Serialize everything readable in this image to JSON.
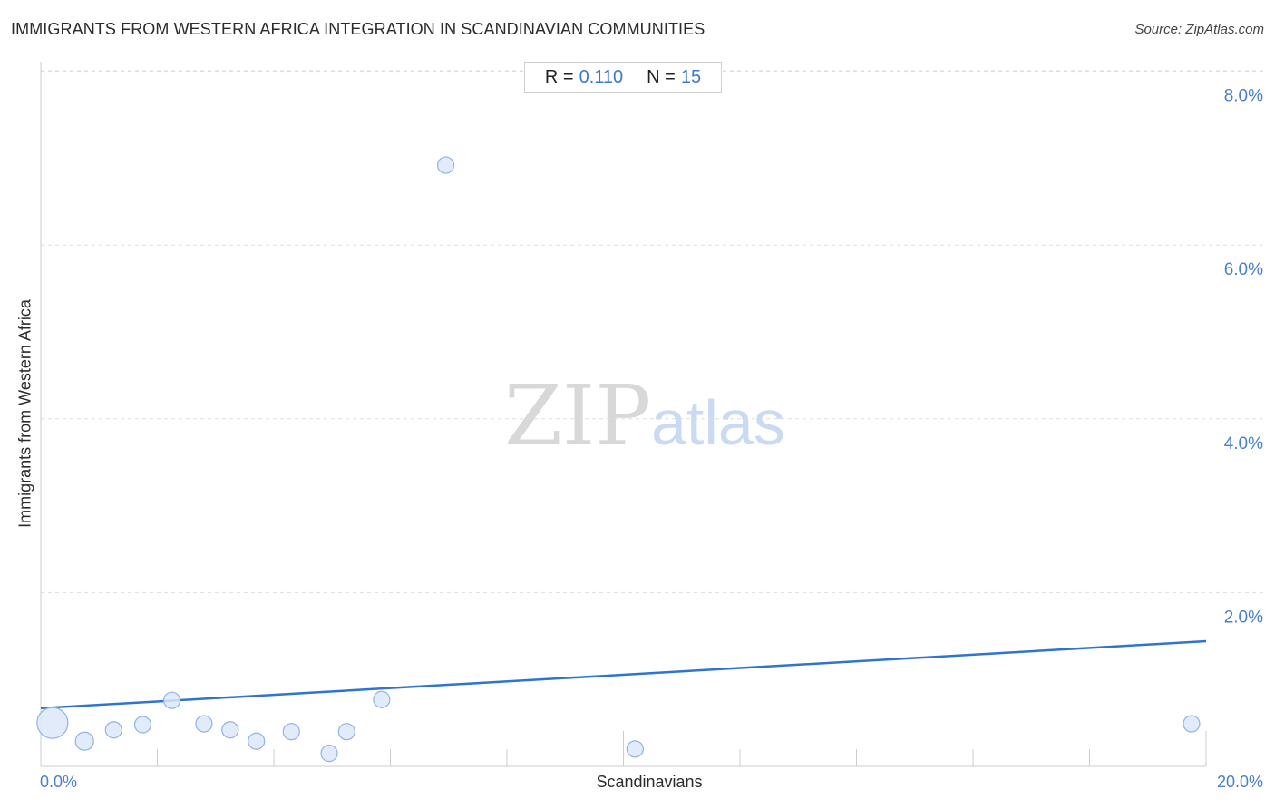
{
  "header": {
    "title": "IMMIGRANTS FROM WESTERN AFRICA INTEGRATION IN SCANDINAVIAN COMMUNITIES",
    "source": "Source: ZipAtlas.com"
  },
  "stats": {
    "r_label": "R =",
    "r_value": "0.110",
    "n_label": "N =",
    "n_value": "15"
  },
  "watermark": {
    "zip": "ZIP",
    "atlas": "atlas"
  },
  "colors": {
    "point_fill": "#dce8f8",
    "point_stroke": "#8fb3e6",
    "trend_line": "#2f74d0",
    "tick_label": "#4a7fd0",
    "grid": "#dddddd"
  },
  "chart_data": {
    "type": "scatter",
    "title": "IMMIGRANTS FROM WESTERN AFRICA INTEGRATION IN SCANDINAVIAN COMMUNITIES",
    "xlabel": "Scandinavians",
    "ylabel": "Immigrants from Western Africa",
    "xlim": [
      0,
      20
    ],
    "ylim": [
      0,
      8.2
    ],
    "x_tick_labels": [
      "0.0%",
      "20.0%"
    ],
    "y_ticks": [
      {
        "value": 2,
        "label": "2.0%"
      },
      {
        "value": 4,
        "label": "4.0%"
      },
      {
        "value": 6,
        "label": "6.0%"
      },
      {
        "value": 8,
        "label": "8.0%"
      }
    ],
    "grid": "horizontal dashed",
    "points": [
      {
        "x": 0.2,
        "y": 0.5,
        "size": "large"
      },
      {
        "x": 0.75,
        "y": 0.29,
        "size": "medium"
      },
      {
        "x": 1.25,
        "y": 0.42,
        "size": "small"
      },
      {
        "x": 1.75,
        "y": 0.48,
        "size": "small"
      },
      {
        "x": 2.25,
        "y": 0.76,
        "size": "small"
      },
      {
        "x": 2.8,
        "y": 0.49,
        "size": "small"
      },
      {
        "x": 3.25,
        "y": 0.42,
        "size": "small"
      },
      {
        "x": 3.7,
        "y": 0.29,
        "size": "small"
      },
      {
        "x": 4.3,
        "y": 0.4,
        "size": "small"
      },
      {
        "x": 4.95,
        "y": 0.15,
        "size": "small"
      },
      {
        "x": 5.25,
        "y": 0.4,
        "size": "small"
      },
      {
        "x": 5.85,
        "y": 0.77,
        "size": "small"
      },
      {
        "x": 6.95,
        "y": 6.92,
        "size": "small"
      },
      {
        "x": 10.2,
        "y": 0.2,
        "size": "small"
      },
      {
        "x": 19.75,
        "y": 0.49,
        "size": "small"
      }
    ],
    "trend_line": {
      "x": [
        0,
        20
      ],
      "y": [
        0.67,
        1.44
      ]
    }
  }
}
